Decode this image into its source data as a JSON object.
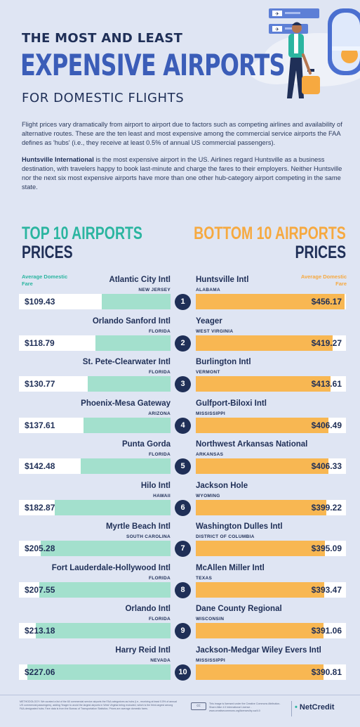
{
  "header": {
    "line1": "THE MOST AND LEAST",
    "line2": "EXPENSIVE AIRPORTS",
    "line3": "FOR DOMESTIC FLIGHTS"
  },
  "intro": {
    "p1": "Flight prices vary dramatically from airport to airport due to factors such as competing airlines and availability of alternative routes. These are the ten least and most expensive among the commercial service airports the FAA defines as 'hubs' (i.e., they receive at least 0.5% of annual US commercial passengers).",
    "p2_bold": "Huntsville International",
    "p2_rest": " is the most expensive airport in the US. Airlines regard Huntsville as a business destination, with travelers happy to book last-minute and charge the fares to their employers. Neither Huntsville nor the next six most expensive airports have more than one other hub-category airport competing in the same state."
  },
  "left_section": {
    "line1": "TOP 10 AIRPORTS",
    "line2": "PRICES",
    "legend": "Average Domestic Fare"
  },
  "right_section": {
    "line1": "BOTTOM 10 AIRPORTS",
    "line2": "PRICES",
    "legend": "Average Domestic Fare"
  },
  "colors": {
    "teal": "#a3e0cd",
    "orange": "#f8b752",
    "navy": "#1f2f57"
  },
  "chart_data": [
    {
      "type": "bar",
      "title": "TOP 10 AIRPORTS PRICES",
      "ylabel": "Average Domestic Fare",
      "orientation": "horizontal",
      "bar_direction": "right-to-left",
      "ranks": [
        "1",
        "2",
        "3",
        "4",
        "5",
        "6",
        "7",
        "8",
        "9",
        "10"
      ],
      "categories": [
        "Atlantic City Intl",
        "Orlando Sanford Intl",
        "St. Pete-Clearwater Intl",
        "Phoenix-Mesa Gateway",
        "Punta Gorda",
        "Hilo Intl",
        "Myrtle Beach Intl",
        "Fort Lauderdale-Hollywood Intl",
        "Orlando Intl",
        "Harry Reid Intl"
      ],
      "states": [
        "NEW JERSEY",
        "FLORIDA",
        "FLORIDA",
        "ARIZONA",
        "FLORIDA",
        "HAWAII",
        "SOUTH CAROLINA",
        "FLORIDA",
        "FLORIDA",
        "NEVADA"
      ],
      "values": [
        109.43,
        118.79,
        130.77,
        137.61,
        142.48,
        182.87,
        205.28,
        207.55,
        213.18,
        227.06
      ],
      "labels": [
        "$109.43",
        "$118.79",
        "$130.77",
        "$137.61",
        "$142.48",
        "$182.87",
        "$205.28",
        "$207.55",
        "$213.18",
        "$227.06"
      ]
    },
    {
      "type": "bar",
      "title": "BOTTOM 10 AIRPORTS PRICES",
      "ylabel": "Average Domestic Fare",
      "orientation": "horizontal",
      "bar_direction": "left-to-right",
      "ranks": [
        "1",
        "2",
        "3",
        "4",
        "5",
        "6",
        "7",
        "8",
        "9",
        "10"
      ],
      "categories": [
        "Huntsville Intl",
        "Yeager",
        "Burlington Intl",
        "Gulfport-Biloxi Intl",
        "Northwest Arkansas National",
        "Jackson Hole",
        "Washington Dulles Intl",
        "McAllen Miller Intl",
        "Dane County Regional",
        "Jackson-Medgar Wiley Evers Intl"
      ],
      "states": [
        "ALABAMA",
        "WEST VIRGINIA",
        "VERMONT",
        "MISSISSIPPI",
        "ARKANSAS",
        "WYOMING",
        "DISTRICT OF COLUMBIA",
        "TEXAS",
        "WISCONSIN",
        "MISSISSIPPI"
      ],
      "values": [
        456.17,
        419.27,
        413.61,
        406.49,
        406.33,
        399.22,
        395.09,
        393.47,
        391.06,
        390.81
      ],
      "labels": [
        "$456.17",
        "$419.27",
        "$413.61",
        "$406.49",
        "$406.33",
        "$399.22",
        "$395.09",
        "$393.47",
        "$391.06",
        "$390.81"
      ]
    }
  ],
  "footer": {
    "methodology": "METHODOLOGY: We curated a list of the 60 commercial service airports the FAA categorizes as hubs (i.e., receiving at least 0.5% of annual US commercial passengers), adding Yeager to avoid the largest airports in West Virginia being excluded, which is the third-largest among FAA-designated hubs. Fare data is from the Bureau of Transportation Statistics. Prices are average domestic fares.",
    "license_badge": "cc",
    "license": "This image is licensed under the Creative Commons Attribution-Share Alike 4.0 International License - www.creativecommons.org/licenses/by-sa/4.0",
    "logo_main": "NetCredit",
    "logo_mark": "•"
  }
}
